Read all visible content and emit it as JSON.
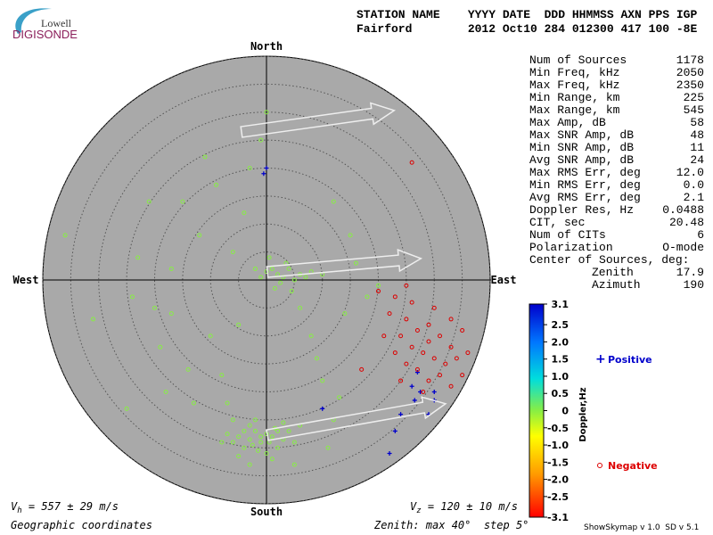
{
  "logo": {
    "top": "Lowell",
    "bottom": "DIGISONDE"
  },
  "header": {
    "line1": "STATION NAME    YYYY DATE  DDD HHMMSS AXN PPS IGP",
    "line2": "Fairford        2012 Oct10 284 012300 417 100 -8E"
  },
  "stats": [
    [
      "Num of Sources",
      "1178"
    ],
    [
      "Min Freq, kHz",
      "2050"
    ],
    [
      "Max Freq, kHz",
      "2350"
    ],
    [
      "Min Range, km",
      "225"
    ],
    [
      "Max Range, km",
      "545"
    ],
    [
      "Max Amp, dB",
      "58"
    ],
    [
      "Max SNR Amp, dB",
      "48"
    ],
    [
      "Min SNR Amp, dB",
      "11"
    ],
    [
      "Avg SNR Amp, dB",
      "24"
    ],
    [
      "Max RMS Err, deg",
      "12.0"
    ],
    [
      "Min RMS Err, deg",
      "0.0"
    ],
    [
      "Avg RMS Err, deg",
      "2.1"
    ],
    [
      "Doppler Res, Hz",
      "0.0488"
    ],
    [
      "CIT, sec",
      "20.48"
    ],
    [
      "Num of CITs",
      "6"
    ],
    [
      "Polarization",
      "O-mode"
    ],
    [
      "Center of Sources, deg:"
    ],
    [
      "Zenith",
      "17.9"
    ],
    [
      "Azimuth",
      "190"
    ]
  ],
  "chart_data": {
    "type": "scatter",
    "directions": {
      "north": "North",
      "south": "South",
      "west": "West",
      "east": "East"
    },
    "rlim": [
      0,
      40
    ],
    "rticks": [
      5,
      10,
      15,
      20,
      25,
      30,
      35,
      40
    ],
    "series": [
      {
        "color": "#88ee44",
        "marker": "circle",
        "x": [
          -2,
          -1,
          0,
          1,
          -3,
          -4,
          2,
          -1,
          -2.5,
          0.5,
          -5,
          -3,
          1.5,
          -6,
          3,
          -1.5,
          -4,
          2,
          -7,
          4,
          -2,
          0,
          -8,
          5,
          -5,
          3,
          -6,
          1,
          -3,
          6,
          2,
          3,
          1,
          0,
          4,
          2.5,
          5,
          1.5,
          -1,
          3.5,
          6,
          -2,
          4.5,
          0.5,
          7,
          8,
          10,
          -23,
          -20,
          -17,
          -12,
          -15,
          -10,
          -19,
          -14,
          -9,
          -5,
          -4,
          0,
          -1,
          -21,
          -8,
          -13,
          -18,
          8,
          10,
          12,
          5,
          9,
          14,
          16,
          18,
          15,
          12,
          20,
          -36,
          -31,
          -25,
          -3,
          6,
          -6,
          11,
          13,
          -7,
          -17,
          -11,
          -24
        ],
        "y": [
          -27,
          -28,
          -27.5,
          -28,
          -28.5,
          -27,
          -27,
          -29,
          -29.5,
          -29,
          -28,
          -26,
          -26.5,
          -29,
          -28.5,
          -30.5,
          -30,
          -30,
          -27.5,
          -27,
          -25,
          -31,
          -29,
          -29,
          -31.5,
          -25.5,
          -25,
          -32,
          -33,
          -26,
          1,
          0.5,
          2,
          1.5,
          2,
          -0.5,
          0,
          -1.5,
          0.5,
          3,
          1,
          2,
          -2,
          4,
          0.5,
          1.5,
          1,
          4,
          -5,
          -6,
          8,
          14,
          -10,
          -12,
          -16,
          17,
          -8,
          12,
          30,
          25,
          14,
          -17,
          -22,
          -20,
          -10,
          -18,
          -25,
          -33,
          -14,
          -6,
          3,
          -3,
          8,
          14,
          -1,
          8,
          -7,
          -23,
          20,
          -5,
          5,
          -30,
          -21,
          -22,
          2,
          22,
          -3
        ]
      },
      {
        "name": "Positive",
        "color": "#0000cc",
        "marker": "plus",
        "x": [
          0,
          -0.5,
          27,
          26,
          27.5,
          30,
          26.5,
          24,
          23,
          30,
          10,
          22,
          29
        ],
        "y": [
          20,
          19,
          -16.5,
          -19,
          -20,
          -20,
          -21.5,
          -24,
          -27,
          -21.5,
          -23,
          -31,
          -24
        ]
      },
      {
        "name": "Negative",
        "color": "#dd0000",
        "marker": "circle",
        "x": [
          25,
          27,
          29,
          31,
          33,
          26,
          28,
          30,
          32,
          24,
          23,
          35,
          34,
          29,
          27,
          31,
          36,
          25,
          22,
          26,
          30,
          33,
          21,
          29,
          24,
          20,
          25,
          26,
          17,
          33,
          35,
          28,
          23
        ],
        "y": [
          -7,
          -9,
          -11,
          -10,
          -12,
          -12,
          -13,
          -14,
          -15,
          -10,
          -13,
          -9,
          -14,
          -8,
          -16,
          -17,
          -13,
          -15,
          -6,
          -4,
          -5,
          -7,
          -10,
          -18,
          -18,
          -2,
          -1,
          21,
          -16,
          -19,
          -17,
          -20,
          -3
        ]
      }
    ]
  },
  "colorbar": {
    "label": "Doppler,Hz",
    "lim": [
      -3.1,
      3.1
    ],
    "ticks": [
      3.1,
      2.5,
      {
        "value": 2,
        "label": "2.0"
      },
      1.5,
      {
        "value": 1,
        "label": "1.0"
      },
      0.5,
      0,
      -0.5,
      {
        "value": -1,
        "label": "-1.0"
      },
      -1.5,
      {
        "value": -2,
        "label": "-2.0"
      },
      -2.5,
      -3.1
    ]
  },
  "footer": {
    "vh": {
      "symbol": "V",
      "sub": "h",
      "text": " = 557 ± 29 m/s"
    },
    "vz": {
      "symbol": "V",
      "sub": "z",
      "text": " = 120 ± 10 m/s"
    },
    "coords": "Geographic coordinates",
    "zenith": "Zenith: max 40°  step 5°",
    "version": "ShowSkymap v 1.0  SD v 5.1"
  }
}
